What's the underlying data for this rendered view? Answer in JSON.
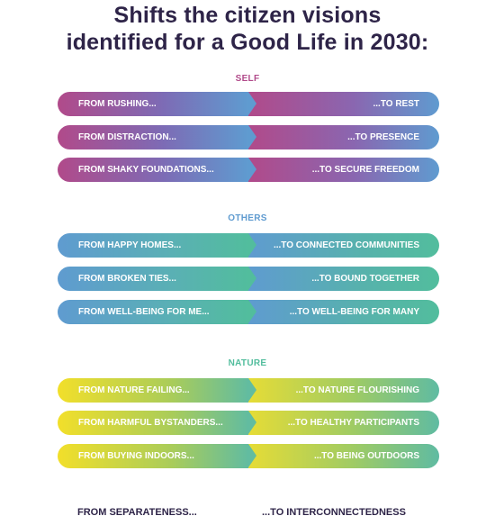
{
  "title": {
    "line1": "Shifts the citizen visions",
    "line2": "identified for a Good Life in 2030:"
  },
  "colors": {
    "title": "#2e2448",
    "self_label": "#b14a8a",
    "others_label": "#5f9bd0",
    "nature_label": "#52bd9d"
  },
  "sections": {
    "self": {
      "label": "SELF",
      "rows": [
        {
          "from": "FROM RUSHING...",
          "to": "...TO REST"
        },
        {
          "from": "FROM DISTRACTION...",
          "to": "...TO PRESENCE"
        },
        {
          "from": "FROM SHAKY FOUNDATIONS...",
          "to": "...TO SECURE FREEDOM"
        }
      ]
    },
    "others": {
      "label": "OTHERS",
      "rows": [
        {
          "from": "FROM HAPPY HOMES...",
          "to": "...TO CONNECTED COMMUNITIES"
        },
        {
          "from": "FROM BROKEN TIES...",
          "to": "...TO BOUND TOGETHER"
        },
        {
          "from": "FROM WELL-BEING FOR ME...",
          "to": "...TO WELL-BEING FOR MANY"
        }
      ]
    },
    "nature": {
      "label": "NATURE",
      "rows": [
        {
          "from": "FROM NATURE FAILING...",
          "to": "...TO NATURE FLOURISHING"
        },
        {
          "from": "FROM HARMFUL BYSTANDERS...",
          "to": "...TO HEALTHY PARTICIPANTS"
        },
        {
          "from": "FROM BUYING INDOORS...",
          "to": "...TO BEING OUTDOORS"
        }
      ]
    }
  },
  "footer": {
    "from": "FROM SEPARATENESS...",
    "to": "...TO INTERCONNECTEDNESS"
  }
}
